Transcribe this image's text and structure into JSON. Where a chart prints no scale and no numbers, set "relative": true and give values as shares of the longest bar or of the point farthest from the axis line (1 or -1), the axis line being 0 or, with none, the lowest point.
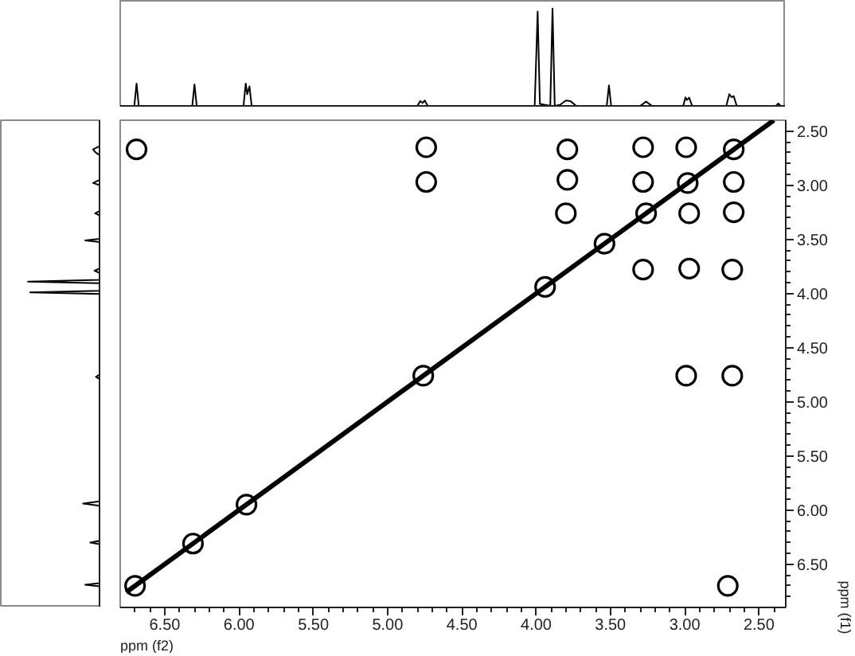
{
  "chart_data": [
    {
      "type": "line",
      "relative": true,
      "xlim": [
        6.8,
        2.32
      ],
      "tick_labels": false,
      "series": [
        {
          "color": "#000000",
          "x": [
            6.78,
            6.705,
            6.69,
            6.675,
            6.315,
            6.3,
            6.285,
            5.97,
            5.955,
            5.945,
            5.93,
            5.915,
            4.8,
            4.78,
            4.765,
            4.75,
            4.73,
            4.01,
            3.99,
            3.975,
            3.905,
            3.89,
            3.875,
            3.84,
            3.8,
            3.77,
            3.73,
            3.525,
            3.51,
            3.495,
            3.3,
            3.26,
            3.22,
            3.01,
            2.995,
            2.985,
            2.97,
            2.95,
            2.72,
            2.7,
            2.685,
            2.67,
            2.65,
            2.385,
            2.37,
            2.355,
            2.34
          ],
          "values": [
            0,
            0,
            0.23,
            0,
            0,
            0.22,
            0,
            0,
            0.23,
            0.12,
            0.2,
            0,
            0,
            0.05,
            0.03,
            0.055,
            0,
            0,
            0.97,
            0.02,
            0,
            1,
            0,
            0.01,
            0.055,
            0.05,
            0,
            0,
            0.21,
            0,
            0,
            0.044,
            0,
            0,
            0.087,
            0.06,
            0.085,
            0,
            0,
            0.12,
            0.09,
            0.1,
            0,
            0,
            0.025,
            0,
            0
          ]
        }
      ]
    },
    {
      "type": "line",
      "orientation": "horizontal",
      "relative": true,
      "ylim": [
        6.9,
        2.4
      ],
      "tick_labels": false,
      "series": [
        {
          "color": "#000000",
          "x": [
            2.42,
            2.64,
            2.67,
            2.7,
            2.72,
            2.95,
            2.98,
            3.0,
            3.24,
            3.26,
            3.28,
            3.495,
            3.51,
            3.525,
            3.77,
            3.79,
            3.81,
            3.875,
            3.89,
            3.905,
            3.975,
            3.99,
            4.005,
            4.75,
            4.77,
            4.79,
            5.92,
            5.94,
            5.96,
            6.285,
            6.3,
            6.315,
            6.675,
            6.69,
            6.705,
            6.88
          ],
          "values": [
            0,
            0,
            -0.09,
            -0.05,
            0,
            0,
            -0.09,
            0,
            0,
            -0.06,
            0,
            0,
            -0.2,
            0,
            0,
            -0.07,
            0,
            0,
            -1,
            0,
            0,
            -0.97,
            0,
            0,
            -0.05,
            0,
            0,
            -0.23,
            0,
            0,
            -0.13,
            0,
            0,
            -0.2,
            0,
            0
          ]
        }
      ]
    },
    {
      "type": "scatter",
      "xlabel": "ppm (f2)",
      "ylabel": "ppm (f1)",
      "xlim": [
        6.8,
        2.32
      ],
      "ylim": [
        6.9,
        2.4
      ],
      "xticks": [
        {
          "value": 6.7,
          "label": null
        },
        {
          "value": 6.6,
          "label": null
        },
        {
          "value": 6.5,
          "label": "6.50"
        },
        {
          "value": 6.4,
          "label": null
        },
        {
          "value": 6.3,
          "label": null
        },
        {
          "value": 6.2,
          "label": null
        },
        {
          "value": 6.1,
          "label": null
        },
        {
          "value": 6.0,
          "label": "6.00"
        },
        {
          "value": 5.9,
          "label": null
        },
        {
          "value": 5.8,
          "label": null
        },
        {
          "value": 5.7,
          "label": null
        },
        {
          "value": 5.6,
          "label": null
        },
        {
          "value": 5.5,
          "label": "5.50"
        },
        {
          "value": 5.4,
          "label": null
        },
        {
          "value": 5.3,
          "label": null
        },
        {
          "value": 5.2,
          "label": null
        },
        {
          "value": 5.1,
          "label": null
        },
        {
          "value": 5.0,
          "label": "5.00"
        },
        {
          "value": 4.9,
          "label": null
        },
        {
          "value": 4.8,
          "label": null
        },
        {
          "value": 4.7,
          "label": null
        },
        {
          "value": 4.6,
          "label": null
        },
        {
          "value": 4.5,
          "label": "4.50"
        },
        {
          "value": 4.4,
          "label": null
        },
        {
          "value": 4.3,
          "label": null
        },
        {
          "value": 4.2,
          "label": null
        },
        {
          "value": 4.1,
          "label": null
        },
        {
          "value": 4.0,
          "label": "4.00"
        },
        {
          "value": 3.9,
          "label": null
        },
        {
          "value": 3.8,
          "label": null
        },
        {
          "value": 3.7,
          "label": null
        },
        {
          "value": 3.6,
          "label": null
        },
        {
          "value": 3.5,
          "label": "3.50"
        },
        {
          "value": 3.4,
          "label": null
        },
        {
          "value": 3.3,
          "label": null
        },
        {
          "value": 3.2,
          "label": null
        },
        {
          "value": 3.1,
          "label": null
        },
        {
          "value": 3.0,
          "label": "3.00"
        },
        {
          "value": 2.9,
          "label": null
        },
        {
          "value": 2.8,
          "label": null
        },
        {
          "value": 2.7,
          "label": null
        },
        {
          "value": 2.6,
          "label": null
        },
        {
          "value": 2.5,
          "label": "2.50"
        },
        {
          "value": 2.4,
          "label": null
        }
      ],
      "yticks": [
        {
          "value": 2.5,
          "label": "2.50"
        },
        {
          "value": 2.6,
          "label": null
        },
        {
          "value": 2.7,
          "label": null
        },
        {
          "value": 2.8,
          "label": null
        },
        {
          "value": 2.9,
          "label": null
        },
        {
          "value": 3.0,
          "label": "3.00"
        },
        {
          "value": 3.1,
          "label": null
        },
        {
          "value": 3.2,
          "label": null
        },
        {
          "value": 3.3,
          "label": null
        },
        {
          "value": 3.4,
          "label": null
        },
        {
          "value": 3.5,
          "label": "3.50"
        },
        {
          "value": 3.6,
          "label": null
        },
        {
          "value": 3.7,
          "label": null
        },
        {
          "value": 3.8,
          "label": null
        },
        {
          "value": 3.9,
          "label": null
        },
        {
          "value": 4.0,
          "label": "4.00"
        },
        {
          "value": 4.1,
          "label": null
        },
        {
          "value": 4.2,
          "label": null
        },
        {
          "value": 4.3,
          "label": null
        },
        {
          "value": 4.4,
          "label": null
        },
        {
          "value": 4.5,
          "label": "4.50"
        },
        {
          "value": 4.6,
          "label": null
        },
        {
          "value": 4.7,
          "label": null
        },
        {
          "value": 4.8,
          "label": null
        },
        {
          "value": 4.9,
          "label": null
        },
        {
          "value": 5.0,
          "label": "5.00"
        },
        {
          "value": 5.1,
          "label": null
        },
        {
          "value": 5.2,
          "label": null
        },
        {
          "value": 5.3,
          "label": null
        },
        {
          "value": 5.4,
          "label": null
        },
        {
          "value": 5.5,
          "label": "5.50"
        },
        {
          "value": 5.6,
          "label": null
        },
        {
          "value": 5.7,
          "label": null
        },
        {
          "value": 5.8,
          "label": null
        },
        {
          "value": 5.9,
          "label": null
        },
        {
          "value": 6.0,
          "label": "6.00"
        },
        {
          "value": 6.1,
          "label": null
        },
        {
          "value": 6.2,
          "label": null
        },
        {
          "value": 6.3,
          "label": null
        },
        {
          "value": 6.4,
          "label": null
        },
        {
          "value": 6.5,
          "label": "6.50"
        },
        {
          "value": 6.6,
          "label": null
        },
        {
          "value": 6.7,
          "label": null
        },
        {
          "value": 6.8,
          "label": null
        }
      ],
      "series": [
        {
          "type": "line",
          "color": "#000000",
          "x": [
            6.76,
            2.4
          ],
          "values": [
            6.76,
            2.4
          ]
        },
        {
          "marker": "circle",
          "color": "#000000",
          "x": [
            6.7,
            6.31,
            5.95,
            4.76,
            3.94,
            3.54,
            3.26,
            2.98,
            2.67,
            6.69,
            4.74,
            4.74,
            3.79,
            3.79,
            3.8,
            3.28,
            3.28,
            2.99,
            2.67,
            2.97,
            2.67,
            3.28,
            2.97,
            2.68,
            2.99,
            2.68,
            2.71
          ],
          "values": [
            6.7,
            6.31,
            5.95,
            4.76,
            3.94,
            3.54,
            3.26,
            2.98,
            2.67,
            2.67,
            2.65,
            2.97,
            2.67,
            2.95,
            3.26,
            2.65,
            2.97,
            2.65,
            2.97,
            3.26,
            3.25,
            3.78,
            3.77,
            3.78,
            4.76,
            4.76,
            6.7
          ]
        }
      ]
    }
  ]
}
